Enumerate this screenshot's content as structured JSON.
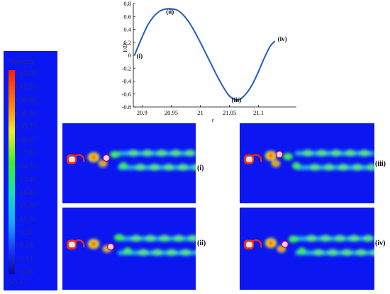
{
  "colorbar": {
    "title": "Vorticity",
    "unit": "[s^-1]",
    "ticks": [
      "45.98",
      "42.92",
      "39.86",
      "36.80",
      "33.73",
      "30.67",
      "27.61",
      "24.55",
      "21.49",
      "18.43",
      "15.37",
      "12.31",
      "9.24",
      "6.18",
      "3.12",
      "0.06"
    ],
    "background": "#0a17f3",
    "text_color": "#2c2a86"
  },
  "chart_data": {
    "type": "line",
    "xlabel": "t",
    "ylabel": "Y/D",
    "xlim": [
      20.885,
      21.165
    ],
    "ylim": [
      -0.8,
      0.8
    ],
    "xticks": [
      "20.9",
      "20.95",
      "21",
      "21.05",
      "21.1"
    ],
    "xtick_values": [
      20.9,
      20.95,
      21.0,
      21.05,
      21.1
    ],
    "yticks": [
      "0.8",
      "0.6",
      "0.4",
      "0.2",
      "0",
      "-0.2",
      "-0.4",
      "-0.6",
      "-0.8"
    ],
    "ytick_values": [
      0.8,
      0.6,
      0.4,
      0.2,
      0,
      -0.2,
      -0.4,
      -0.6,
      -0.8
    ],
    "series": [
      {
        "color": "#1f5fbf",
        "x": [
          20.887,
          20.9,
          20.91,
          20.92,
          20.93,
          20.94,
          20.948,
          20.96,
          20.97,
          20.98,
          20.99,
          21.0,
          21.01,
          21.02,
          21.03,
          21.04,
          21.05,
          21.062,
          21.07,
          21.08,
          21.09,
          21.1,
          21.11,
          21.12,
          21.128
        ],
        "y": [
          0.0,
          0.28,
          0.47,
          0.6,
          0.68,
          0.715,
          0.72,
          0.7,
          0.63,
          0.52,
          0.37,
          0.2,
          0.02,
          -0.16,
          -0.34,
          -0.5,
          -0.63,
          -0.69,
          -0.67,
          -0.58,
          -0.44,
          -0.25,
          -0.04,
          0.14,
          0.22
        ]
      }
    ],
    "annotations": [
      {
        "text": "(i)",
        "x": 20.887,
        "y": 0.0
      },
      {
        "text": "(ii)",
        "x": 20.948,
        "y": 0.72
      },
      {
        "text": "(iii)",
        "x": 21.062,
        "y": -0.69
      },
      {
        "text": "(iv)",
        "x": 21.128,
        "y": 0.22
      }
    ],
    "grid": false
  },
  "panels": [
    {
      "label": "(i)",
      "cylinder_offset": 0.0
    },
    {
      "label": "(ii)",
      "cylinder_offset": 1.0
    },
    {
      "label": "(iii)",
      "cylinder_offset": -1.0
    },
    {
      "label": "(iv)",
      "cylinder_offset": 0.3
    }
  ]
}
